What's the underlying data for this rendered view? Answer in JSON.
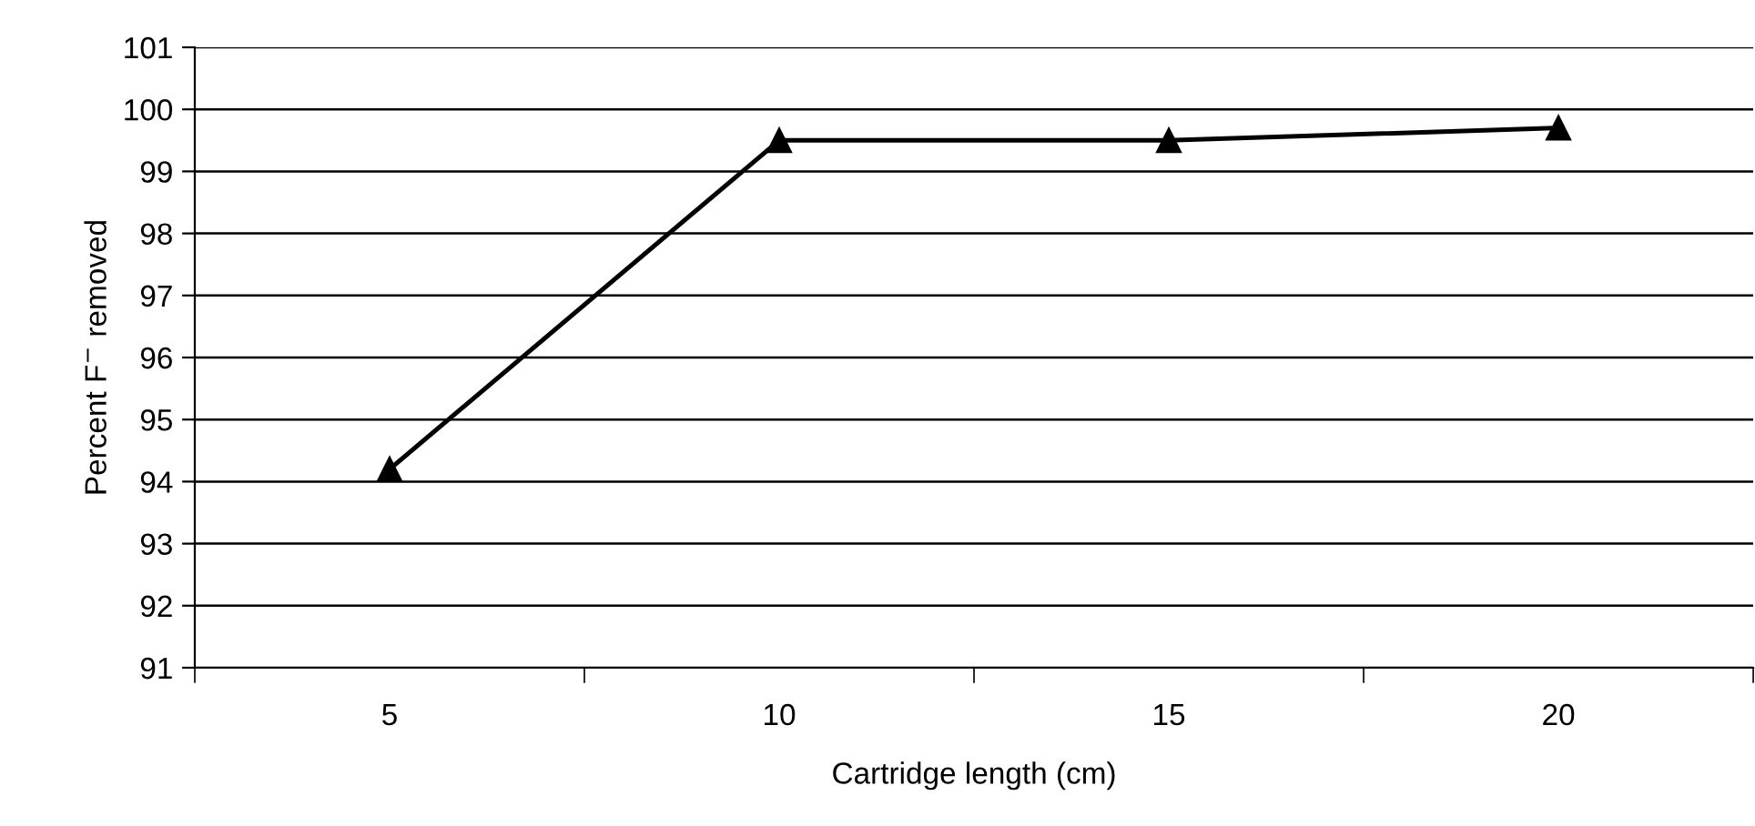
{
  "chart_data": {
    "type": "line",
    "xlabel": "Cartridge length (cm)",
    "ylabel": "Percent F$^{−}$ removed",
    "categories": [
      "5",
      "10",
      "15",
      "20"
    ],
    "series": [
      {
        "color": "#000000",
        "values": [
          94.2,
          99.5,
          99.5,
          99.7
        ]
      }
    ],
    "ylim": [
      91,
      101
    ],
    "yticks": [
      91,
      92,
      93,
      94,
      95,
      96,
      97,
      98,
      99,
      100,
      101
    ],
    "grid": "y",
    "marker": "triangle",
    "line_style": "solid"
  }
}
